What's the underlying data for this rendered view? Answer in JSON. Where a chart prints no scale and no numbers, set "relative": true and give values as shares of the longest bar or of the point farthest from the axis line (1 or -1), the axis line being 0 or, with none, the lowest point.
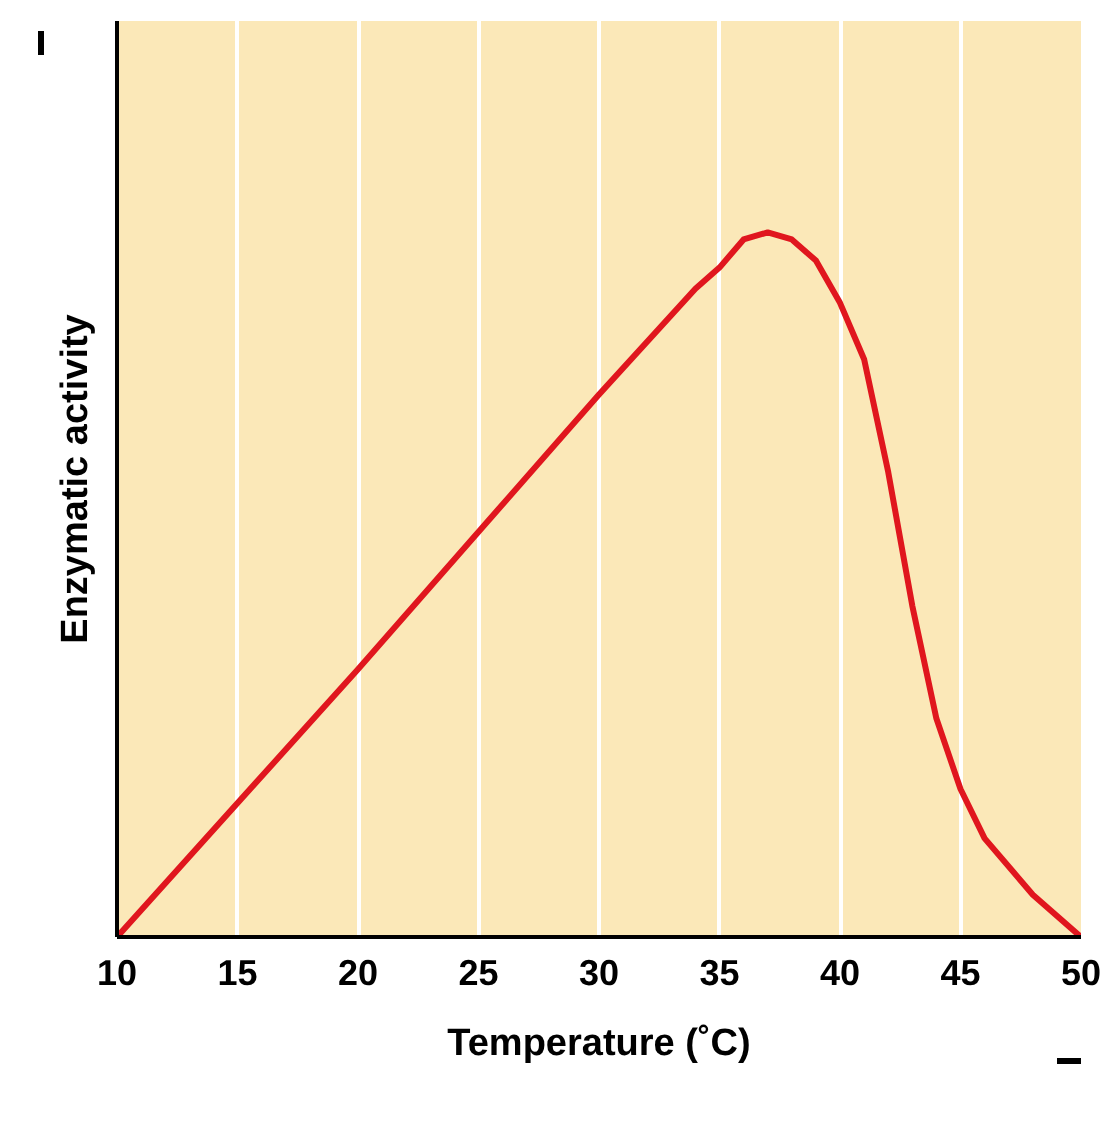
{
  "chart_data": {
    "type": "line",
    "relative": true,
    "xlabel": "Temperature (˚C)",
    "ylabel": "Enzymatic activity",
    "x": [
      10,
      20,
      30,
      34,
      35,
      36,
      37,
      38,
      39,
      40,
      41,
      42,
      43,
      44,
      45,
      46,
      48,
      50
    ],
    "series": [
      {
        "color": "#e0161e",
        "values": [
          0,
          0.38,
          0.77,
          0.92,
          0.95,
          0.99,
          1,
          0.99,
          0.96,
          0.9,
          0.82,
          0.66,
          0.47,
          0.31,
          0.21,
          0.14,
          0.06,
          0
        ]
      }
    ],
    "xlim": [
      10,
      50
    ],
    "xticks": [
      10,
      15,
      20,
      25,
      30,
      35,
      40,
      45,
      50
    ],
    "grid": "x",
    "marker": "none",
    "line_style": "solid"
  }
}
